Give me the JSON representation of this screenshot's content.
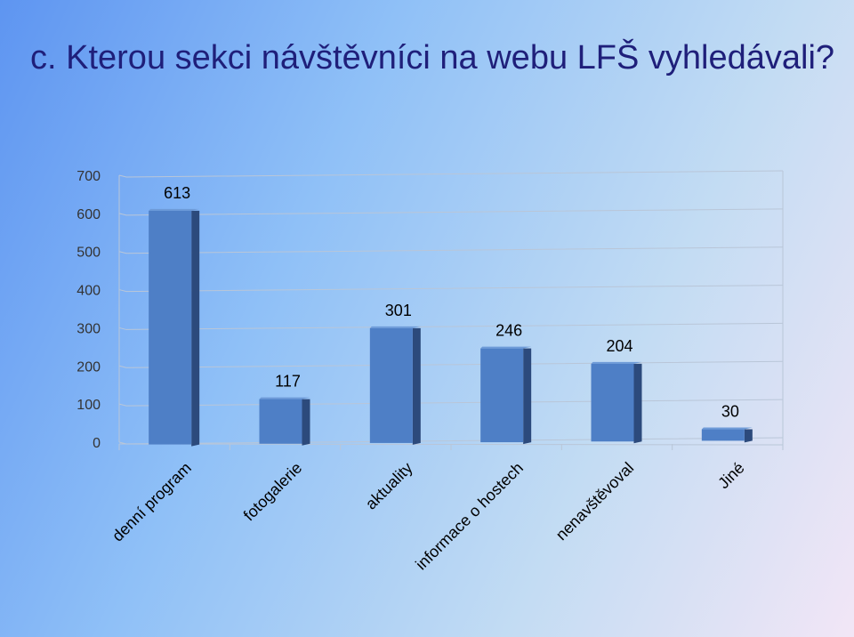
{
  "title": "c. Kterou sekci návštěvníci na webu LFŠ vyhledávali?",
  "colors": {
    "title": "#1f1f7a",
    "bar_front": "#4e7fc6",
    "bar_side": "#2c4a7c",
    "bar_top": "#6e9bd8",
    "grid": "#b9c6d8"
  },
  "chart_data": {
    "type": "bar",
    "title": "",
    "xlabel": "",
    "ylabel": "",
    "categories": [
      "denní program",
      "fotogalerie",
      "aktuality",
      "informace o hostech",
      "nenavštěvoval",
      "Jiné"
    ],
    "values": [
      613,
      117,
      301,
      246,
      204,
      30
    ],
    "data_labels": [
      "613",
      "117",
      "301",
      "246",
      "204",
      "30"
    ],
    "ylim": [
      0,
      700
    ],
    "yticks": [
      "0",
      "100",
      "200",
      "300",
      "400",
      "500",
      "600",
      "700"
    ],
    "grid": true,
    "legend": "none",
    "three_d": true
  }
}
